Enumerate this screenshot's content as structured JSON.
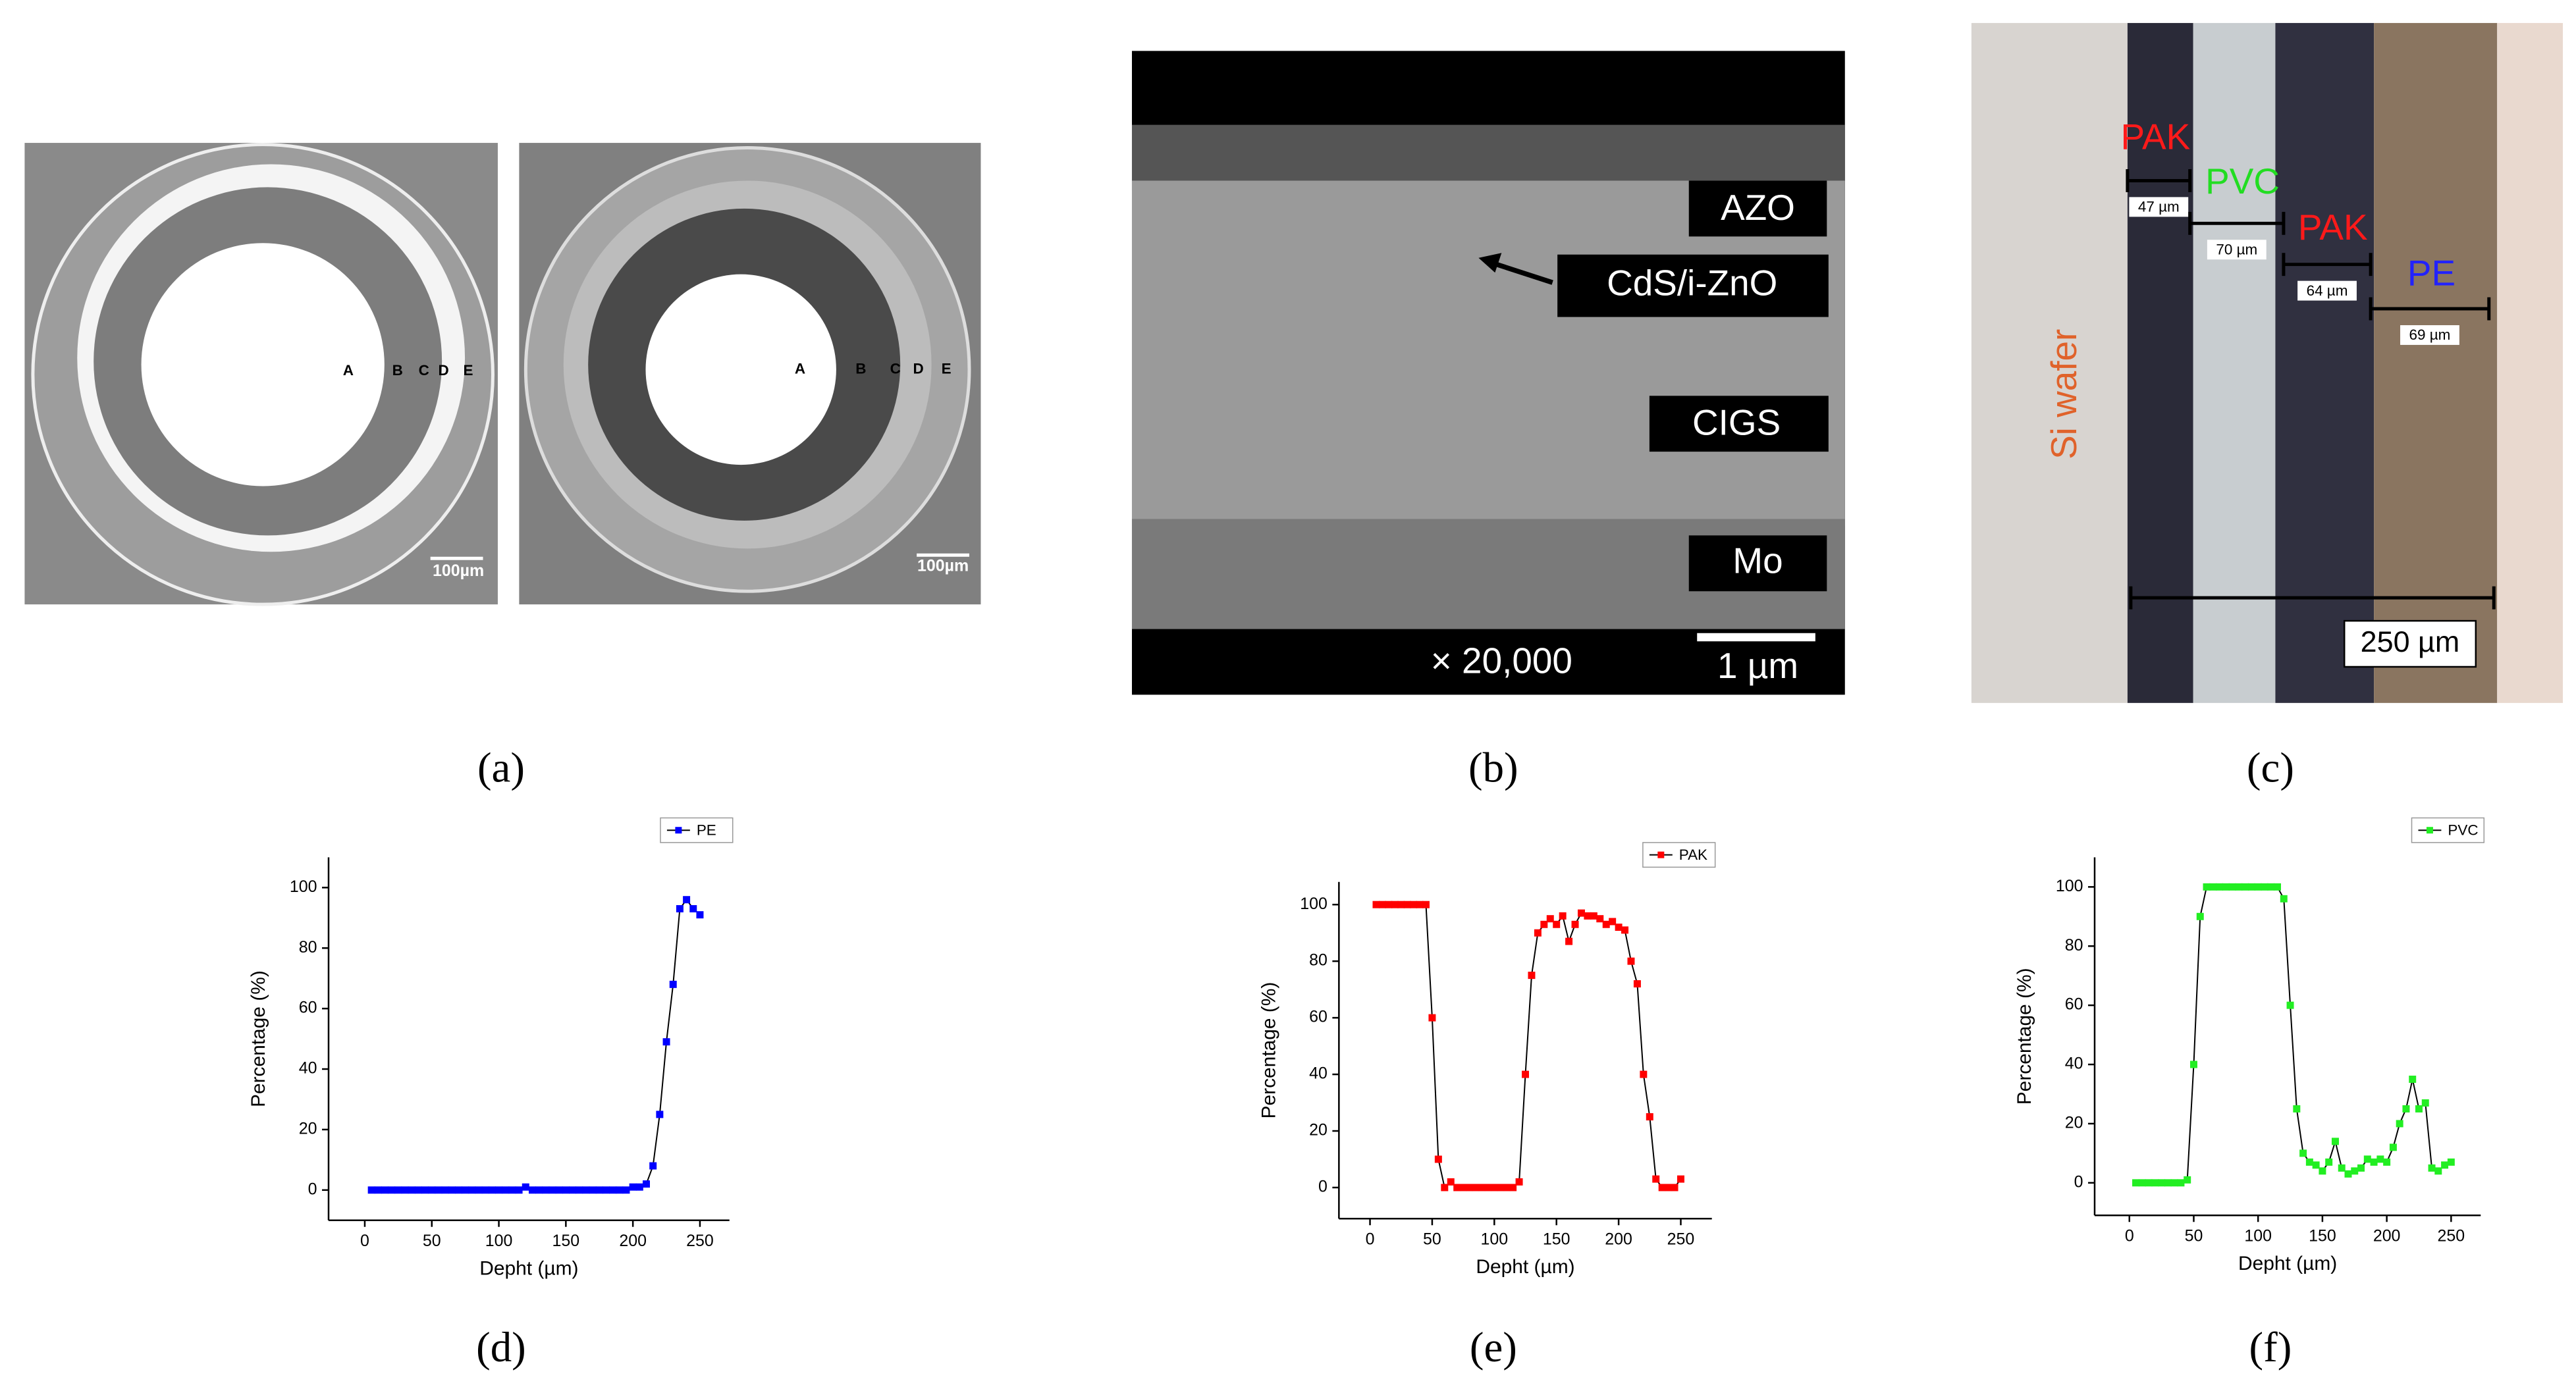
{
  "figure": {
    "a": {
      "label": "(a)",
      "left_letters": [
        "A",
        "B",
        "C",
        "D",
        "E"
      ],
      "right_letters": [
        "A",
        "B",
        "C",
        "D",
        "E"
      ],
      "scale_bars": [
        "100µm",
        "100µm"
      ]
    },
    "b": {
      "label": "(b)",
      "layers": [
        "AZO",
        "CdS/i-ZnO",
        "CIGS",
        "Mo"
      ],
      "magnification": "× 20,000",
      "scale_bar": "1 µm"
    },
    "c": {
      "label": "(c)",
      "substrate": "Si wafer",
      "layers": [
        {
          "name": "PAK",
          "thickness": "47 µm",
          "color": "#ff1a1a"
        },
        {
          "name": "PVC",
          "thickness": "70 µm",
          "color": "#22dd22"
        },
        {
          "name": "PAK",
          "thickness": "64 µm",
          "color": "#ff1a1a"
        },
        {
          "name": "PE",
          "thickness": "69 µm",
          "color": "#2222ff"
        }
      ],
      "total": "250 µm"
    }
  },
  "chart_data": [
    {
      "type": "line",
      "label": "(d)",
      "x_label": "Depht (µm)",
      "y_label": "Percentage (%)",
      "line_color": "#000000",
      "legend": "top-right",
      "xlim": [
        -27,
        272
      ],
      "xticks": [
        0,
        50,
        100,
        150,
        200,
        250
      ],
      "ylim": [
        -10,
        110
      ],
      "yticks": [
        0,
        20,
        40,
        60,
        80,
        100
      ],
      "x": [
        5,
        10,
        15,
        20,
        25,
        30,
        35,
        40,
        45,
        50,
        55,
        60,
        65,
        70,
        75,
        80,
        85,
        90,
        95,
        100,
        105,
        110,
        115,
        120,
        125,
        130,
        135,
        140,
        145,
        150,
        155,
        160,
        165,
        170,
        175,
        180,
        185,
        190,
        195,
        200,
        205,
        210,
        215,
        220,
        225,
        230,
        235,
        240,
        245,
        250
      ],
      "series": [
        {
          "name": "PE",
          "color": "#0000ff",
          "values": [
            0,
            0,
            0,
            0,
            0,
            0,
            0,
            0,
            0,
            0,
            0,
            0,
            0,
            0,
            0,
            0,
            0,
            0,
            0,
            0,
            0,
            0,
            0,
            1,
            0,
            0,
            0,
            0,
            0,
            0,
            0,
            0,
            0,
            0,
            0,
            0,
            0,
            0,
            0,
            1,
            1,
            2,
            8,
            25,
            49,
            68,
            93,
            96,
            93,
            91
          ]
        }
      ]
    },
    {
      "type": "line",
      "label": "(e)",
      "x_label": "Depht (µm)",
      "y_label": "Percentage (%)",
      "line_color": "#000000",
      "legend": "top-right",
      "xlim": [
        -25,
        275
      ],
      "xticks": [
        0,
        50,
        100,
        150,
        200,
        250
      ],
      "ylim": [
        -11,
        108
      ],
      "yticks": [
        0,
        20,
        40,
        60,
        80,
        100
      ],
      "x": [
        5,
        10,
        15,
        20,
        25,
        30,
        35,
        40,
        45,
        50,
        55,
        60,
        65,
        70,
        75,
        80,
        85,
        90,
        95,
        100,
        105,
        110,
        115,
        120,
        125,
        130,
        135,
        140,
        145,
        150,
        155,
        160,
        165,
        170,
        175,
        180,
        185,
        190,
        195,
        200,
        205,
        210,
        215,
        220,
        225,
        230,
        235,
        240,
        245,
        250
      ],
      "series": [
        {
          "name": "PAK",
          "color": "#ff0000",
          "values": [
            100,
            100,
            100,
            100,
            100,
            100,
            100,
            100,
            100,
            60,
            10,
            0,
            2,
            0,
            0,
            0,
            0,
            0,
            0,
            0,
            0,
            0,
            0,
            2,
            40,
            75,
            90,
            93,
            95,
            93,
            96,
            87,
            93,
            97,
            96,
            96,
            95,
            93,
            94,
            92,
            91,
            80,
            72,
            40,
            25,
            3,
            0,
            0,
            0,
            3
          ]
        }
      ]
    },
    {
      "type": "line",
      "label": "(f)",
      "x_label": "Depht (µm)",
      "y_label": "Percentage (%)",
      "line_color": "#000000",
      "legend": "top-right",
      "xlim": [
        -27,
        273
      ],
      "xticks": [
        0,
        50,
        100,
        150,
        200,
        250
      ],
      "ylim": [
        -11,
        110
      ],
      "yticks": [
        0,
        20,
        40,
        60,
        80,
        100
      ],
      "x": [
        5,
        10,
        15,
        20,
        25,
        30,
        35,
        40,
        45,
        50,
        55,
        60,
        65,
        70,
        75,
        80,
        85,
        90,
        95,
        100,
        105,
        110,
        115,
        120,
        125,
        130,
        135,
        140,
        145,
        150,
        155,
        160,
        165,
        170,
        175,
        180,
        185,
        190,
        195,
        200,
        205,
        210,
        215,
        220,
        225,
        230,
        235,
        240,
        245,
        250
      ],
      "series": [
        {
          "name": "PVC",
          "color": "#22ee22",
          "values": [
            0,
            0,
            0,
            0,
            0,
            0,
            0,
            0,
            1,
            40,
            90,
            100,
            100,
            100,
            100,
            100,
            100,
            100,
            100,
            100,
            100,
            100,
            100,
            96,
            60,
            25,
            10,
            7,
            6,
            4,
            7,
            14,
            5,
            3,
            4,
            5,
            8,
            7,
            8,
            7,
            12,
            20,
            25,
            35,
            25,
            27,
            5,
            4,
            6,
            7
          ]
        }
      ]
    }
  ]
}
